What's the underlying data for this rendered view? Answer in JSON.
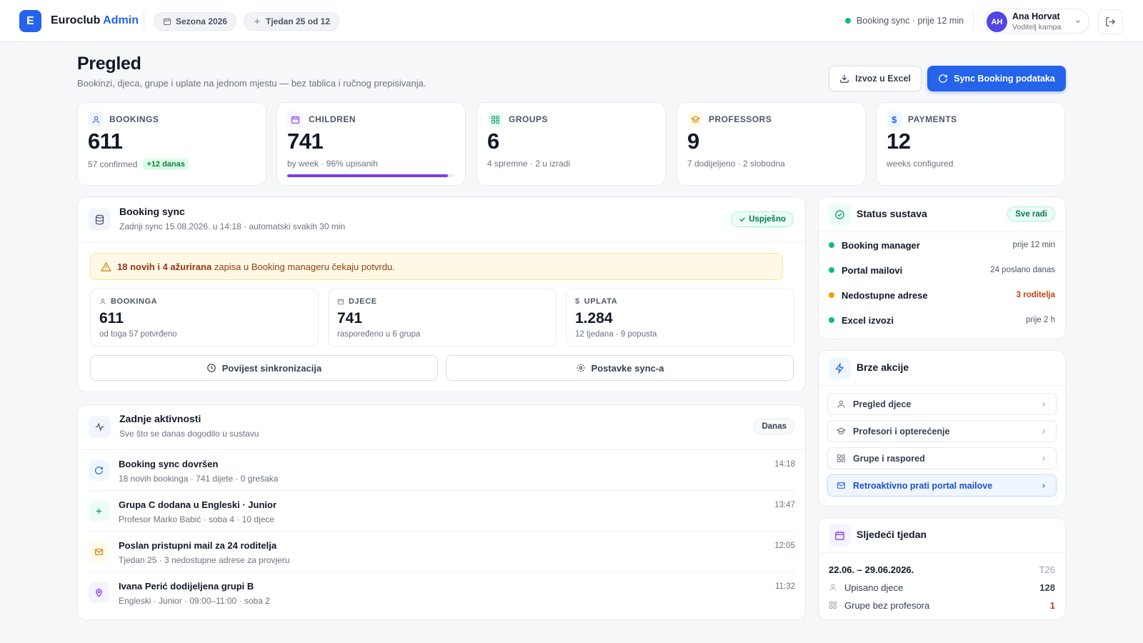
{
  "app": {
    "logo_letter": "E",
    "brand_name": "Euroclub",
    "brand_accent": "Admin",
    "season": "Sezona 2026",
    "week": "Tjedan 25 od 12",
    "sync_status": "Booking sync · prije 12 min",
    "user": {
      "initials": "AH",
      "name": "Ana Horvat",
      "role": "Voditelj kampa"
    }
  },
  "page": {
    "title": "Pregled",
    "subtitle": "Bookinzi, djeca, grupe i uplate na jednom mjestu — bez tablica i ručnog prepisivanja.",
    "export_label": "Izvoz u Excel",
    "sync_label": "Sync Booking podataka"
  },
  "stats": {
    "bookings": {
      "label": "BOOKINGS",
      "value": "611",
      "sub": "57 confirmed",
      "badge": "+12 danas"
    },
    "children": {
      "label": "CHILDREN",
      "value": "741",
      "sub": "by week · 96% upisanih",
      "progress": 0.96
    },
    "groups": {
      "label": "GROUPS",
      "value": "6",
      "sub": "4 spremne · 2 u izradi"
    },
    "professors": {
      "label": "PROFESSORS",
      "value": "9",
      "sub": "7 dodijeljeno · 2 slobodna"
    },
    "payments": {
      "label": "PAYMENTS",
      "value": "12",
      "sub": "weeks configured"
    }
  },
  "booking_sync": {
    "title": "Booking sync",
    "subtitle": "Zadnji sync 15.08.2026. u 14:18 · automatski svakih 30 min",
    "status": "Uspješno",
    "alert_bold": "18 novih i 4 ažurirana",
    "alert_rest": " zapisa u Booking manageru čekaju potvrdu.",
    "minis": [
      {
        "label": "BOOKINGA",
        "value": "611",
        "sub": "od toga 57 potvrđeno"
      },
      {
        "label": "DJECE",
        "value": "741",
        "sub": "raspoređeno u 6 grupa"
      },
      {
        "label": "UPLATA",
        "value": "1.284",
        "sub": "12 tjedana · 9 popusta"
      }
    ],
    "history_label": "Povijest sinkronizacija",
    "settings_label": "Postavke sync-a"
  },
  "activity": {
    "title": "Zadnje aktivnosti",
    "subtitle": "Sve što se danas dogodilo u sustavu",
    "badge": "Danas",
    "items": [
      {
        "title": "Booking sync dovršen",
        "desc": "18 novih bookinga · 741 dijete · 0 grešaka",
        "time": "14:18",
        "icon": "refresh-icon"
      },
      {
        "title": "Grupa C dodana u Engleski · Junior",
        "desc": "Profesor Marko Babić · soba 4 · 10 djece",
        "time": "13:47",
        "icon": "plus-icon"
      },
      {
        "title": "Poslan pristupni mail za 24 roditelja",
        "desc": "Tjedan 25 · 3 nedostupne adrese za provjeru",
        "time": "12:05",
        "icon": "mail-icon"
      },
      {
        "title": "Ivana Perić dodijeljena grupi B",
        "desc": "Engleski · Junior · 09:00–11:00 · soba 2",
        "time": "11:32",
        "icon": "location-pin-icon"
      }
    ]
  },
  "system_status": {
    "title": "Status sustava",
    "badge": "Sve radi",
    "rows": [
      {
        "label": "Booking manager",
        "value": "prije 12 min",
        "color": "#10b981"
      },
      {
        "label": "Portal mailovi",
        "value": "24 poslano danas",
        "color": "#10b981"
      },
      {
        "label": "Nedostupne adrese",
        "value": "3 roditelja",
        "color": "#f59e0b",
        "value_color": "#c2410c"
      },
      {
        "label": "Excel izvozi",
        "value": "prije 2 h",
        "color": "#10b981"
      }
    ]
  },
  "quick_actions": {
    "title": "Brze akcije",
    "items": [
      {
        "label": "Pregled djece",
        "icon": "user-icon"
      },
      {
        "label": "Profesori i opterećenje",
        "icon": "graduation-cap-icon"
      },
      {
        "label": "Grupe i raspored",
        "icon": "grid-icon"
      },
      {
        "label": "Retroaktivno prati portal mailove",
        "icon": "mail-icon"
      }
    ]
  },
  "next_week": {
    "title": "Sljedeći tjedan",
    "dates": "22.06. – 29.06.2026.",
    "week_code": "T26",
    "enrolled_label": "Upisano djece",
    "enrolled_value": "128",
    "no_prof_label": "Grupe bez profesora",
    "no_prof_value": "1"
  },
  "colors": {
    "primary": "#2563eb",
    "success": "#10b981",
    "warning": "#f59e0b",
    "purple": "#7c3aed",
    "danger_text": "#c2410c"
  }
}
